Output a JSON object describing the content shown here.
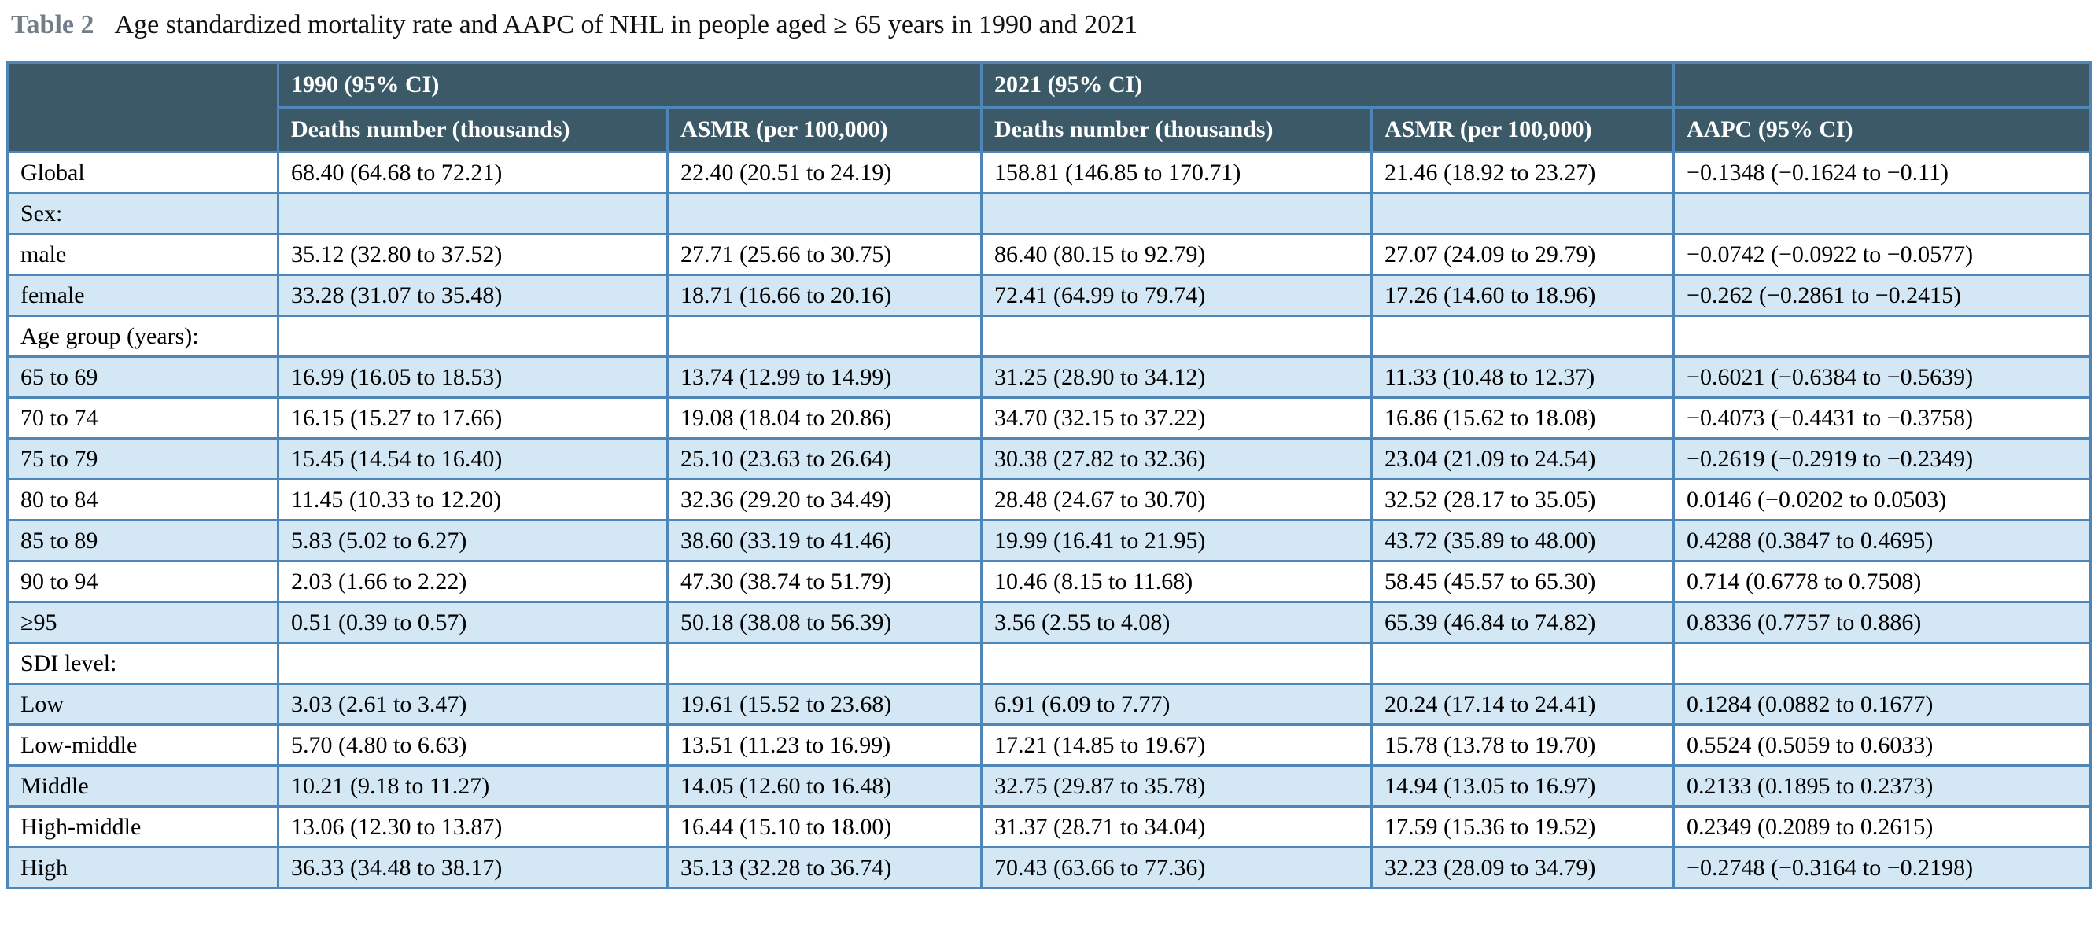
{
  "title": {
    "label": "Table 2",
    "text": "Age standardized mortality rate and AAPC of NHL in people aged ≥ 65 years in 1990 and 2021"
  },
  "colors": {
    "header_bg": "#3b5966",
    "row_alt": "#d3e7f4",
    "row_bg": "#ffffff",
    "border": "#4f86b8",
    "title_label": "#717e8a",
    "text": "#000000"
  },
  "chart_data": {
    "type": "table",
    "title": "Age standardized mortality rate and AAPC of NHL in people aged ≥ 65 years in 1990 and 2021",
    "group_headers": [
      "1990 (95% CI)",
      "2021 (95% CI)"
    ],
    "columns": [
      "Deaths number (thousands)",
      "ASMR (per 100,000)",
      "Deaths number (thousands)",
      "ASMR (per 100,000)",
      "AAPC (95% CI)"
    ],
    "rows": [
      {
        "label": "Global",
        "cells": [
          "68.40 (64.68 to 72.21)",
          "22.40 (20.51 to 24.19)",
          "158.81 (146.85 to 170.71)",
          "21.46 (18.92 to 23.27)",
          "−0.1348 (−0.1624 to −0.11)"
        ]
      },
      {
        "label": "Sex:",
        "cells": [
          "",
          "",
          "",
          "",
          ""
        ]
      },
      {
        "label": "male",
        "cells": [
          "35.12 (32.80 to 37.52)",
          "27.71 (25.66 to 30.75)",
          "86.40 (80.15 to 92.79)",
          "27.07 (24.09 to 29.79)",
          "−0.0742 (−0.0922 to −0.0577)"
        ]
      },
      {
        "label": "female",
        "cells": [
          "33.28 (31.07 to 35.48)",
          "18.71 (16.66 to 20.16)",
          "72.41 (64.99 to 79.74)",
          "17.26 (14.60 to 18.96)",
          "−0.262 (−0.2861 to −0.2415)"
        ]
      },
      {
        "label": "Age group (years):",
        "cells": [
          "",
          "",
          "",
          "",
          ""
        ]
      },
      {
        "label": "65 to 69",
        "cells": [
          "16.99 (16.05 to 18.53)",
          "13.74 (12.99 to 14.99)",
          "31.25 (28.90 to 34.12)",
          "11.33 (10.48 to 12.37)",
          "−0.6021 (−0.6384 to −0.5639)"
        ]
      },
      {
        "label": "70 to 74",
        "cells": [
          "16.15 (15.27 to 17.66)",
          "19.08 (18.04 to 20.86)",
          "34.70 (32.15 to 37.22)",
          "16.86 (15.62 to 18.08)",
          "−0.4073 (−0.4431 to −0.3758)"
        ]
      },
      {
        "label": "75 to 79",
        "cells": [
          "15.45 (14.54 to 16.40)",
          "25.10 (23.63 to 26.64)",
          "30.38 (27.82 to 32.36)",
          "23.04 (21.09 to 24.54)",
          "−0.2619 (−0.2919 to −0.2349)"
        ]
      },
      {
        "label": "80 to 84",
        "cells": [
          "11.45 (10.33 to 12.20)",
          "32.36 (29.20 to 34.49)",
          "28.48 (24.67 to 30.70)",
          "32.52 (28.17 to 35.05)",
          "0.0146 (−0.0202 to 0.0503)"
        ]
      },
      {
        "label": "85 to 89",
        "cells": [
          "5.83 (5.02 to 6.27)",
          "38.60 (33.19 to 41.46)",
          "19.99 (16.41 to 21.95)",
          "43.72 (35.89 to 48.00)",
          "0.4288 (0.3847 to 0.4695)"
        ]
      },
      {
        "label": "90 to 94",
        "cells": [
          "2.03 (1.66 to 2.22)",
          "47.30 (38.74 to 51.79)",
          "10.46 (8.15 to 11.68)",
          "58.45 (45.57 to 65.30)",
          "0.714 (0.6778 to 0.7508)"
        ]
      },
      {
        "label": "≥95",
        "cells": [
          "0.51 (0.39 to 0.57)",
          "50.18 (38.08 to 56.39)",
          "3.56 (2.55 to 4.08)",
          "65.39 (46.84 to 74.82)",
          "0.8336 (0.7757 to 0.886)"
        ]
      },
      {
        "label": "SDI level:",
        "cells": [
          "",
          "",
          "",
          "",
          ""
        ]
      },
      {
        "label": "Low",
        "cells": [
          "3.03 (2.61 to 3.47)",
          "19.61 (15.52 to 23.68)",
          "6.91 (6.09 to 7.77)",
          "20.24 (17.14 to 24.41)",
          "0.1284 (0.0882 to 0.1677)"
        ]
      },
      {
        "label": "Low-middle",
        "cells": [
          "5.70 (4.80 to 6.63)",
          "13.51 (11.23 to 16.99)",
          "17.21 (14.85 to 19.67)",
          "15.78 (13.78 to 19.70)",
          "0.5524 (0.5059 to 0.6033)"
        ]
      },
      {
        "label": "Middle",
        "cells": [
          "10.21 (9.18 to 11.27)",
          "14.05 (12.60 to 16.48)",
          "32.75 (29.87 to 35.78)",
          "14.94 (13.05 to 16.97)",
          "0.2133 (0.1895 to 0.2373)"
        ]
      },
      {
        "label": "High-middle",
        "cells": [
          "13.06 (12.30 to 13.87)",
          "16.44 (15.10 to 18.00)",
          "31.37 (28.71 to 34.04)",
          "17.59 (15.36 to 19.52)",
          "0.2349 (0.2089 to 0.2615)"
        ]
      },
      {
        "label": "High",
        "cells": [
          "36.33 (34.48 to 38.17)",
          "35.13 (32.28 to 36.74)",
          "70.43 (63.66 to 77.36)",
          "32.23 (28.09 to 34.79)",
          "−0.2748 (−0.3164 to −0.2198)"
        ]
      }
    ]
  }
}
